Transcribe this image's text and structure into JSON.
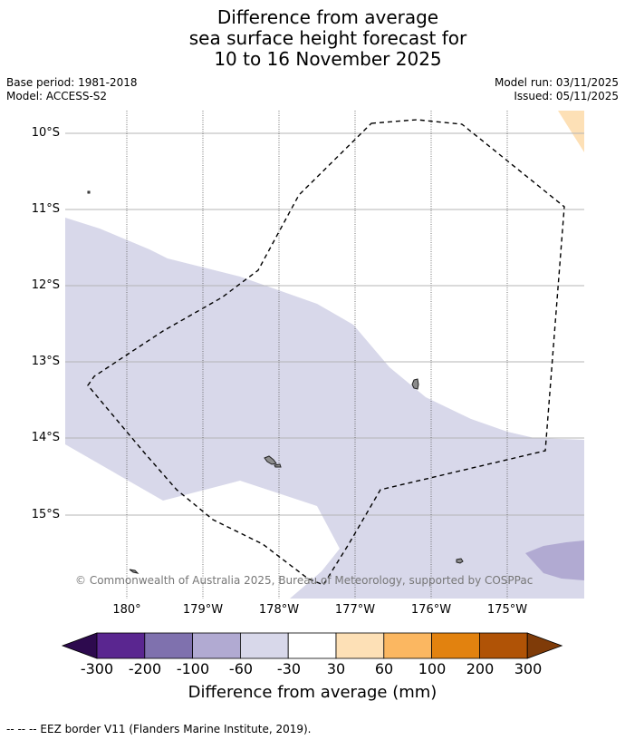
{
  "title_lines": [
    "Difference from average",
    "sea surface height forecast for",
    "10 to 16 November 2025"
  ],
  "meta": {
    "base_period": "Base period: 1981-2018",
    "model": "Model: ACCESS-S2",
    "model_run": "Model run: 03/11/2025",
    "issued": "Issued: 05/11/2025"
  },
  "map": {
    "lat_labels": [
      "10°S",
      "11°S",
      "12°S",
      "13°S",
      "14°S",
      "15°S"
    ],
    "lon_labels": [
      "180°",
      "179°W",
      "178°W",
      "177°W",
      "176°W",
      "175°W"
    ],
    "copyright": "© Commonwealth of Australia 2025, Bureau of Meteorology, supported by COSPPac",
    "colors": {
      "band_m60_m30": "#d8d8ea",
      "band_m100_m60": "#b1aad2",
      "band_30_60": "#fde0b6",
      "eez": "#000000",
      "land": "#8c8c8c"
    }
  },
  "colorbar": {
    "labels": [
      "-300",
      "-200",
      "-100",
      "-60",
      "-30",
      "30",
      "60",
      "100",
      "200",
      "300"
    ],
    "colors": [
      "#2d0a4e",
      "#5a2690",
      "#7f71ae",
      "#b1aad2",
      "#d8d8ea",
      "#ffffff",
      "#fde0b6",
      "#fbb761",
      "#e2820f",
      "#b05306",
      "#7f3b08"
    ],
    "title": "Difference from average (mm)"
  },
  "footnote": "--  --  -- EEZ border V11 (Flanders Marine Institute, 2019)."
}
